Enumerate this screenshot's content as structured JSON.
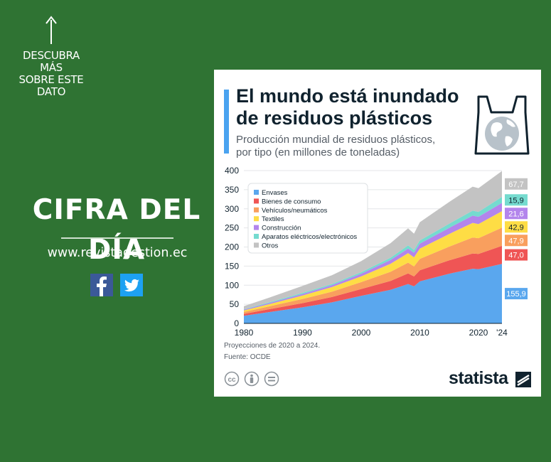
{
  "cta": {
    "text": "DESCUBRA MÁS\nSOBRE ESTE\nDATO",
    "icon": "arrow-up-icon"
  },
  "left_title": "CIFRA DEL DÍA",
  "website": "www.revistagestion.ec",
  "social": [
    {
      "icon": "facebook-icon",
      "color": "#3b5998"
    },
    {
      "icon": "twitter-icon",
      "color": "#1da1f2"
    }
  ],
  "card": {
    "title_line1": "El mundo está inundado",
    "title_line2": "de residuos plásticos",
    "subtitle_line1": "Producción mundial de residuos plásticos,",
    "subtitle_line2": "por tipo (en millones de toneladas)",
    "footnote1": "Proyecciones de 2020 a 2024.",
    "footnote2": "Fuente: OCDE",
    "brand": "statista"
  },
  "chart_data": {
    "type": "area",
    "stacked": true,
    "x": [
      1980,
      1985,
      1990,
      1995,
      2000,
      2005,
      2008,
      2009,
      2010,
      2015,
      2019,
      2020,
      2024
    ],
    "x_ticks": [
      "1980",
      "1990",
      "2000",
      "2010",
      "2020",
      "'24"
    ],
    "x_tick_values": [
      1980,
      1990,
      2000,
      2010,
      2020,
      2024
    ],
    "ylim": [
      0,
      400
    ],
    "y_ticks": [
      0,
      50,
      100,
      150,
      200,
      250,
      300,
      350,
      400
    ],
    "grid": true,
    "legend_position": "top-left",
    "series": [
      {
        "name": "Envases",
        "color": "#5aa7ee",
        "values": [
          20,
          31,
          42,
          55,
          72,
          88,
          103,
          97,
          110,
          130,
          143,
          142,
          155.9
        ]
      },
      {
        "name": "Bienes de consumo",
        "color": "#ef5555",
        "values": [
          5,
          8,
          11,
          14,
          18,
          23,
          28,
          26,
          29,
          35,
          40,
          40,
          47.0
        ]
      },
      {
        "name": "Vehículos/neumáticos",
        "color": "#f99f5e",
        "values": [
          5,
          8,
          11,
          14,
          18,
          24,
          28,
          26,
          30,
          36,
          42,
          41,
          47.9
        ]
      },
      {
        "name": "Textiles",
        "color": "#fedd45",
        "values": [
          4,
          6,
          9,
          12,
          15,
          21,
          25,
          24,
          27,
          33,
          38,
          37,
          42.9
        ]
      },
      {
        "name": "Construcción",
        "color": "#b385ec",
        "values": [
          2,
          3,
          4,
          5,
          7,
          10,
          12,
          12,
          13,
          16,
          19,
          19,
          21.6
        ]
      },
      {
        "name": "Aparatos eléctricos/electrónicos",
        "color": "#75dbcf",
        "values": [
          1,
          2,
          3,
          3,
          4,
          6,
          8,
          7,
          8,
          11,
          13,
          13,
          15.9
        ]
      },
      {
        "name": "Otros",
        "color": "#c3c3c3",
        "values": [
          8,
          13,
          18,
          23,
          29,
          38,
          45,
          43,
          48,
          57,
          63,
          62,
          67.7
        ]
      }
    ],
    "end_labels": [
      "155,9",
      "47,0",
      "47,9",
      "42,9",
      "21,6",
      "15,9",
      "67,7"
    ]
  }
}
